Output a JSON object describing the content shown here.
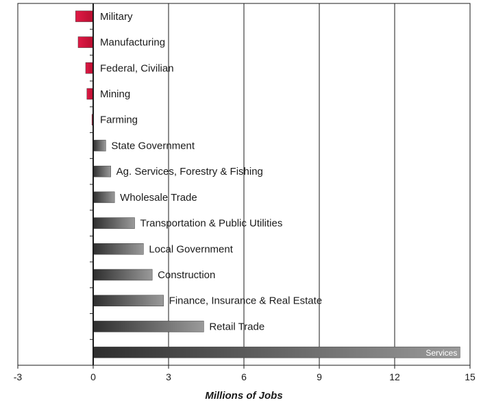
{
  "chart_data": {
    "type": "bar",
    "orientation": "horizontal",
    "title": "",
    "xlabel": "Millions of Jobs",
    "ylabel": "",
    "xlim": [
      -3,
      15
    ],
    "xticks": [
      -3,
      0,
      3,
      6,
      9,
      12,
      15
    ],
    "grid": "vertical",
    "legend": "none",
    "categories": [
      "Military",
      "Manufacturing",
      "Federal, Civilian",
      "Mining",
      "Farming",
      "State Government",
      "Ag. Services, Forestry & Fishing",
      "Wholesale Trade",
      "Transportation & Public Utilities",
      "Local Government",
      "Construction",
      "Finance, Insurance & Real Estate",
      "Retail Trade",
      "Services"
    ],
    "values": [
      -0.7,
      -0.6,
      -0.3,
      -0.25,
      -0.05,
      0.5,
      0.7,
      0.85,
      1.65,
      2.0,
      2.35,
      2.8,
      4.4,
      14.6
    ],
    "colors": {
      "negative": "#d0143a",
      "positive_dark": "#2e2e2e",
      "positive_light": "#9a9a9a"
    }
  }
}
